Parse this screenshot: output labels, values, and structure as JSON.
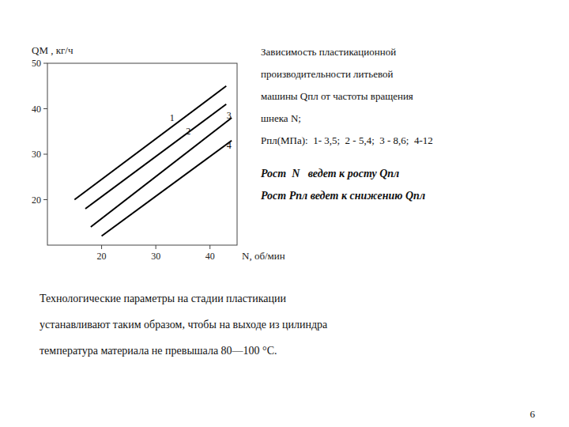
{
  "chart_data": {
    "type": "line",
    "title": [
      "Зависимость пластикационной",
      "производительности литьевой",
      "машины Qпл от частоты вращения",
      "шнека N;",
      "Рпл(МПа):  1- 3,5;  2 - 5,4;  3 - 8,6;  4-12"
    ],
    "subtitle": [
      "Рост  N   ведет к росту Qпл",
      "Рост Рпл ведет к снижению Qпл"
    ],
    "x_label": "N, об/мин",
    "y_label": "QM , кг/ч",
    "color": "#000000",
    "xlim": [
      10,
      45
    ],
    "ylim": [
      10,
      50
    ],
    "xticks": [
      20,
      30,
      40
    ],
    "yticks": [
      20,
      30,
      40,
      50
    ],
    "series": [
      {
        "x": [
          15,
          43
        ],
        "values": [
          20,
          45
        ]
      },
      {
        "x": [
          17,
          43
        ],
        "values": [
          18,
          41
        ]
      },
      {
        "x": [
          18,
          44
        ],
        "values": [
          14,
          38
        ]
      },
      {
        "x": [
          20,
          44
        ],
        "values": [
          12,
          33
        ]
      }
    ],
    "annotations": [
      {
        "text": "1",
        "x": 33,
        "y": 38
      },
      {
        "text": "2",
        "x": 36,
        "y": 35
      },
      {
        "text": "3",
        "x": 43.5,
        "y": 38.5
      },
      {
        "text": "4",
        "x": 43.5,
        "y": 32
      },
      {
        "text": "Технологические параметры на стадии пластикации"
      },
      {
        "text": "устанавливают таким образом, чтобы на выходе из цилиндра"
      },
      {
        "text": "температура материала не превышала 80—100 °C."
      },
      {
        "text": "6"
      }
    ]
  }
}
